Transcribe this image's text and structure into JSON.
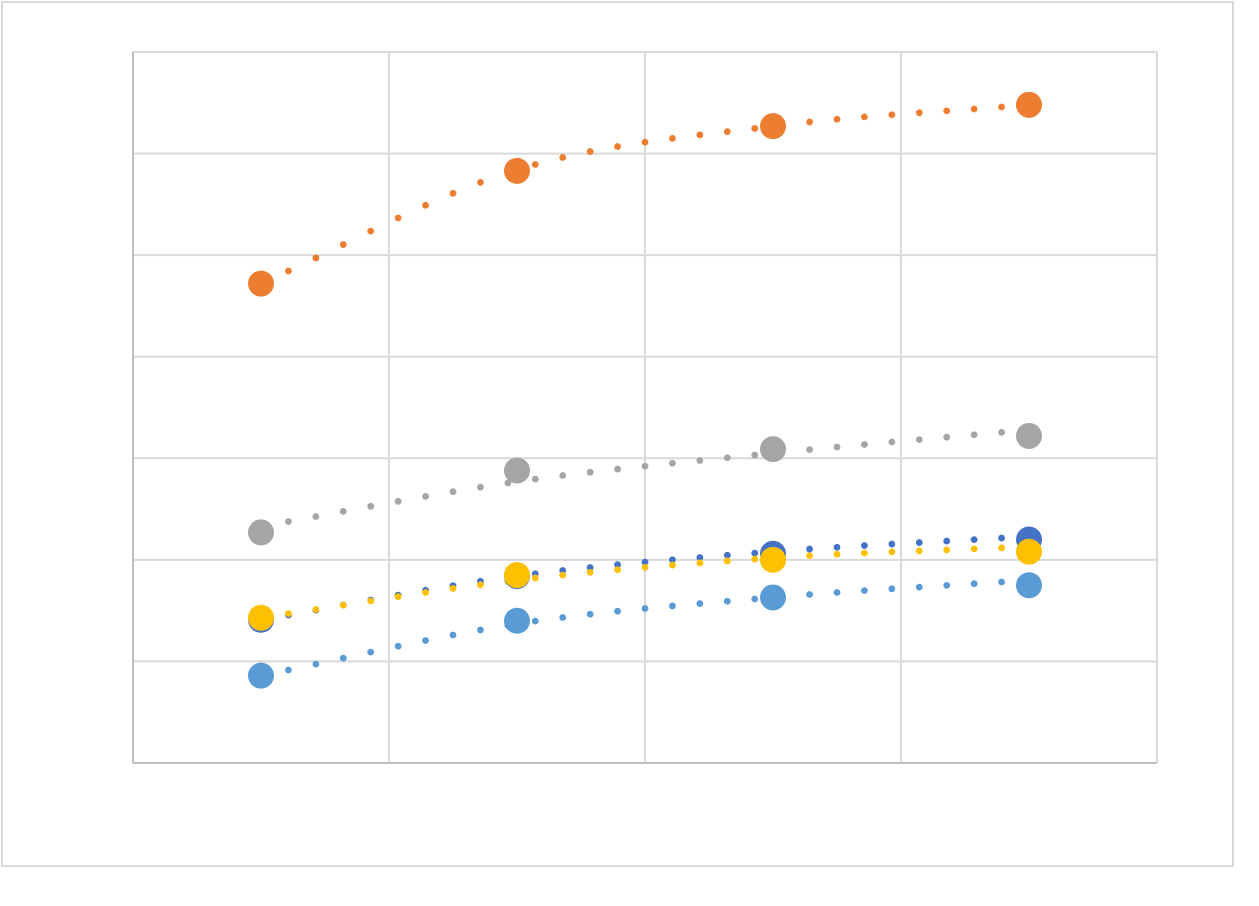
{
  "chart_data": {
    "type": "scatter",
    "title": "",
    "xlabel": "",
    "ylabel": "",
    "xlim": [
      0,
      4
    ],
    "ylim": [
      0,
      7
    ],
    "x_gridlines": [
      1,
      2,
      3
    ],
    "y_gridlines": [
      1,
      2,
      3,
      4,
      5,
      6
    ],
    "grid": true,
    "legend": "none",
    "trendline_style": "dotted",
    "series": [
      {
        "color": "#ED7D31",
        "x": [
          0.5,
          1.5,
          2.5,
          3.5
        ],
        "y": [
          4.72,
          5.83,
          6.27,
          6.48
        ],
        "trend": [
          4.72,
          5.84,
          6.27,
          6.48
        ]
      },
      {
        "color": "#A5A5A5",
        "x": [
          0.5,
          1.5,
          2.5,
          3.5
        ],
        "y": [
          2.27,
          2.88,
          3.09,
          3.22
        ],
        "trend": [
          2.33,
          2.77,
          3.05,
          3.28
        ]
      },
      {
        "color": "#4472C4",
        "x": [
          0.5,
          1.5,
          2.5,
          3.5
        ],
        "y": [
          1.41,
          1.84,
          2.06,
          2.2
        ],
        "trend": [
          1.41,
          1.84,
          2.08,
          2.23
        ]
      },
      {
        "color": "#FFC000",
        "x": [
          0.5,
          1.5,
          2.5,
          3.5
        ],
        "y": [
          1.43,
          1.85,
          2.0,
          2.08
        ],
        "trend": [
          1.43,
          1.8,
          2.02,
          2.13
        ]
      },
      {
        "color": "#5B9BD5",
        "x": [
          0.5,
          1.5,
          2.5,
          3.5
        ],
        "y": [
          0.86,
          1.4,
          1.63,
          1.75
        ],
        "trend": [
          0.86,
          1.37,
          1.63,
          1.8
        ]
      }
    ]
  }
}
